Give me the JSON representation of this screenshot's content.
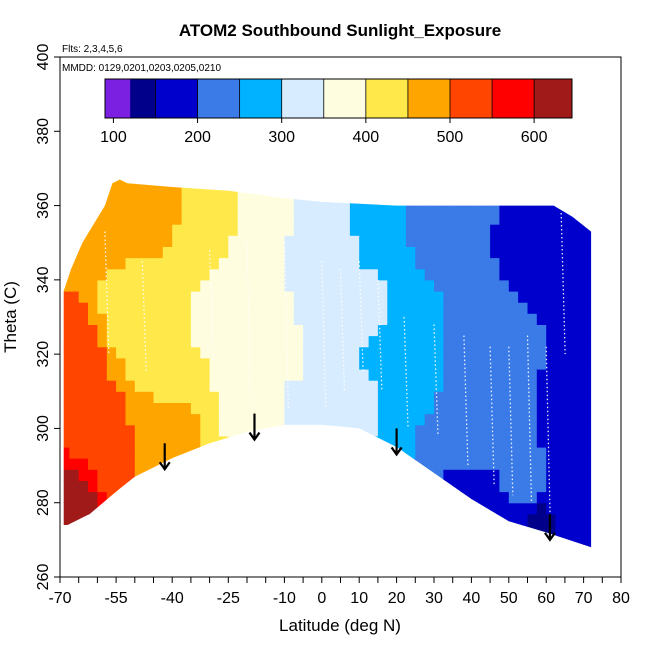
{
  "chart_data": {
    "type": "heatmap",
    "title": "ATOM2 Southbound Sunlight_Exposure",
    "annotations": [
      "Flts: 2,3,4,5,6",
      "MMDD: 0129,0201,0203,0205,0210"
    ],
    "xlabel": "Latitude (deg N)",
    "ylabel": "Theta (C)",
    "xlim": [
      -70,
      80
    ],
    "ylim": [
      260,
      400
    ],
    "x_ticks": [
      -70,
      -55,
      -40,
      -25,
      -10,
      0,
      10,
      20,
      30,
      40,
      50,
      60,
      70,
      80
    ],
    "x_minor_ticks": [
      -65,
      -60,
      -50,
      -45,
      -35,
      -30,
      -20,
      -15,
      -5,
      5,
      15,
      25,
      35,
      45,
      55,
      65,
      75
    ],
    "y_ticks": [
      260,
      280,
      300,
      320,
      340,
      360,
      380,
      400
    ],
    "colorbar": {
      "range": [
        90,
        645
      ],
      "ticks": [
        100,
        200,
        300,
        400,
        500,
        600
      ],
      "boundaries": [
        150,
        200,
        250,
        300,
        350,
        400,
        450,
        500,
        550,
        600
      ],
      "colors": [
        "#7b1fe0",
        "#00008b",
        "#0000cd",
        "#3a7be8",
        "#00b2ff",
        "#d8ecff",
        "#fffde0",
        "#ffe84a",
        "#ffa500",
        "#ff4500",
        "#ff0000",
        "#a01a1a"
      ]
    },
    "upper_boundary": [
      [
        -69,
        337
      ],
      [
        -67,
        343
      ],
      [
        -64,
        350
      ],
      [
        -61,
        355
      ],
      [
        -58,
        360
      ],
      [
        -56,
        366
      ],
      [
        -54,
        367
      ],
      [
        -52,
        366
      ],
      [
        -40,
        365
      ],
      [
        -25,
        364
      ],
      [
        -10,
        362
      ],
      [
        0,
        361
      ],
      [
        20,
        360
      ],
      [
        40,
        360
      ],
      [
        55,
        360
      ],
      [
        62,
        360
      ],
      [
        67,
        357
      ],
      [
        72,
        353
      ]
    ],
    "lower_boundary": [
      [
        72,
        268
      ],
      [
        60,
        272
      ],
      [
        50,
        275
      ],
      [
        40,
        281
      ],
      [
        30,
        288
      ],
      [
        20,
        295
      ],
      [
        10,
        300
      ],
      [
        0,
        301
      ],
      [
        -10,
        301
      ],
      [
        -20,
        299
      ],
      [
        -30,
        296
      ],
      [
        -40,
        292
      ],
      [
        -50,
        287
      ],
      [
        -55,
        283
      ],
      [
        -62,
        277
      ],
      [
        -68,
        274
      ],
      [
        -69,
        274
      ]
    ],
    "field_anchors": [
      {
        "lat": -68,
        "theta": 280,
        "value": 620
      },
      {
        "lat": -68,
        "theta": 320,
        "value": 540
      },
      {
        "lat": -60,
        "theta": 300,
        "value": 520
      },
      {
        "lat": -55,
        "theta": 360,
        "value": 480
      },
      {
        "lat": -45,
        "theta": 360,
        "value": 460
      },
      {
        "lat": -30,
        "theta": 360,
        "value": 430
      },
      {
        "lat": -15,
        "theta": 358,
        "value": 360
      },
      {
        "lat": 0,
        "theta": 355,
        "value": 330
      },
      {
        "lat": 15,
        "theta": 358,
        "value": 280
      },
      {
        "lat": 30,
        "theta": 358,
        "value": 230
      },
      {
        "lat": 45,
        "theta": 355,
        "value": 200
      },
      {
        "lat": 60,
        "theta": 350,
        "value": 170
      },
      {
        "lat": 70,
        "theta": 345,
        "value": 160
      },
      {
        "lat": -50,
        "theta": 330,
        "value": 430
      },
      {
        "lat": -40,
        "theta": 320,
        "value": 400
      },
      {
        "lat": -25,
        "theta": 330,
        "value": 390
      },
      {
        "lat": -10,
        "theta": 320,
        "value": 360
      },
      {
        "lat": 0,
        "theta": 320,
        "value": 335
      },
      {
        "lat": 10,
        "theta": 330,
        "value": 310
      },
      {
        "lat": 20,
        "theta": 320,
        "value": 270
      },
      {
        "lat": 30,
        "theta": 320,
        "value": 250
      },
      {
        "lat": 45,
        "theta": 320,
        "value": 230
      },
      {
        "lat": 60,
        "theta": 320,
        "value": 200
      },
      {
        "lat": 70,
        "theta": 310,
        "value": 180
      },
      {
        "lat": -40,
        "theta": 300,
        "value": 460
      },
      {
        "lat": -20,
        "theta": 305,
        "value": 390
      },
      {
        "lat": -5,
        "theta": 305,
        "value": 340
      },
      {
        "lat": 10,
        "theta": 305,
        "value": 310
      },
      {
        "lat": 25,
        "theta": 300,
        "value": 250
      },
      {
        "lat": 40,
        "theta": 295,
        "value": 230
      },
      {
        "lat": 55,
        "theta": 285,
        "value": 210
      },
      {
        "lat": 65,
        "theta": 280,
        "value": 190
      },
      {
        "lat": 70,
        "theta": 275,
        "value": 160
      },
      {
        "lat": -50,
        "theta": 290,
        "value": 500
      },
      {
        "lat": 40,
        "theta": 285,
        "value": 180
      },
      {
        "lat": 60,
        "theta": 275,
        "value": 140
      }
    ],
    "arrows": [
      {
        "lat": -42,
        "theta_top": 296,
        "theta_tip": 289
      },
      {
        "lat": -18,
        "theta_top": 304,
        "theta_tip": 297
      },
      {
        "lat": 20,
        "theta_top": 300,
        "theta_tip": 293
      },
      {
        "lat": 61,
        "theta_top": 277,
        "theta_tip": 270
      }
    ],
    "flight_traces": [
      {
        "lat": -58,
        "theta_top": 353,
        "theta_bottom": 320
      },
      {
        "lat": -48,
        "theta_top": 345,
        "theta_bottom": 315
      },
      {
        "lat": -30,
        "theta_top": 348,
        "theta_bottom": 318
      },
      {
        "lat": -20,
        "theta_top": 350,
        "theta_bottom": 305
      },
      {
        "lat": -10,
        "theta_top": 350,
        "theta_bottom": 305
      },
      {
        "lat": 0,
        "theta_top": 345,
        "theta_bottom": 305
      },
      {
        "lat": 5,
        "theta_top": 343,
        "theta_bottom": 310
      },
      {
        "lat": 10,
        "theta_top": 345,
        "theta_bottom": 315
      },
      {
        "lat": 15,
        "theta_top": 340,
        "theta_bottom": 310
      },
      {
        "lat": 22,
        "theta_top": 330,
        "theta_bottom": 300
      },
      {
        "lat": 30,
        "theta_top": 328,
        "theta_bottom": 298
      },
      {
        "lat": 38,
        "theta_top": 325,
        "theta_bottom": 290
      },
      {
        "lat": 45,
        "theta_top": 322,
        "theta_bottom": 285
      },
      {
        "lat": 50,
        "theta_top": 322,
        "theta_bottom": 282
      },
      {
        "lat": 55,
        "theta_top": 325,
        "theta_bottom": 280
      },
      {
        "lat": 60,
        "theta_top": 322,
        "theta_bottom": 275
      },
      {
        "lat": 64,
        "theta_top": 358,
        "theta_bottom": 320
      }
    ]
  }
}
